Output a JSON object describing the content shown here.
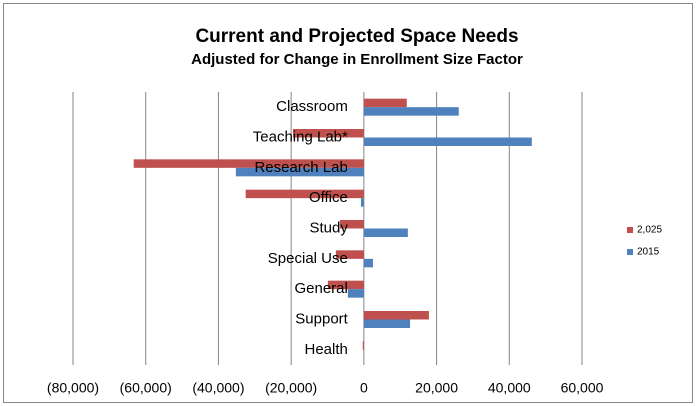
{
  "chart_data": {
    "type": "hbar",
    "title": "Current and Projected Space Needs",
    "subtitle": "Adjusted for Change in Enrollment Size Factor",
    "categories": [
      "Classroom",
      "Teaching Lab*",
      "Research Lab",
      "Office",
      "Study",
      "Special Use",
      "General",
      "Support",
      "Health"
    ],
    "series": [
      {
        "name": "2,025",
        "color": "#c0504d",
        "values": [
          11800,
          -19500,
          -63300,
          -32500,
          -6600,
          -7700,
          -9900,
          17900,
          -300
        ]
      },
      {
        "name": "2015",
        "color": "#4f81bd",
        "values": [
          26100,
          46200,
          -35200,
          -800,
          12100,
          2500,
          -4400,
          12700,
          0
        ]
      }
    ],
    "xlim": [
      -80000,
      60000
    ],
    "xticks": [
      {
        "value": -80000,
        "label": "(80,000)"
      },
      {
        "value": -60000,
        "label": "(60,000)"
      },
      {
        "value": -40000,
        "label": "(40,000)"
      },
      {
        "value": -20000,
        "label": "(20,000)"
      },
      0,
      {
        "value": 20000,
        "label": "20,000"
      },
      {
        "value": 40000,
        "label": "40,000"
      },
      {
        "value": 60000,
        "label": "60,000"
      }
    ],
    "grid": true,
    "legend": "right"
  }
}
